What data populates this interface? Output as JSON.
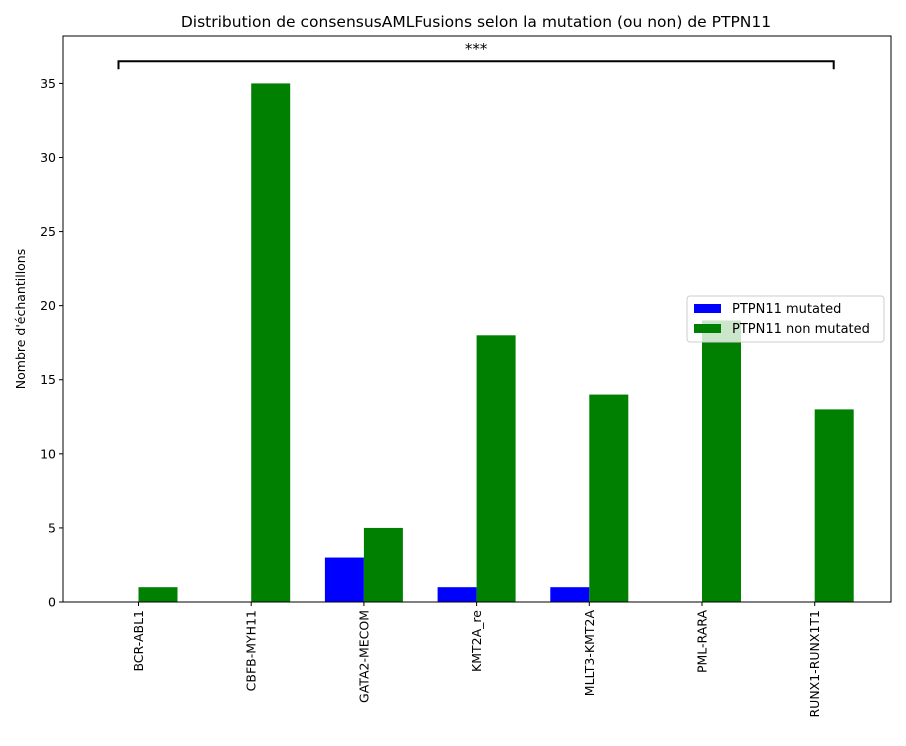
{
  "chart_data": {
    "type": "bar",
    "title": "Distribution de consensusAMLFusions selon la mutation (ou non) de PTPN11",
    "ylabel": "Nombre d'échantillons",
    "xlabel": "",
    "categories": [
      "BCR-ABL1",
      "CBFB-MYH11",
      "GATA2-MECOM",
      "KMT2A_re",
      "MLLT3-KMT2A",
      "PML-RARA",
      "RUNX1-RUNX1T1"
    ],
    "series": [
      {
        "name": "PTPN11 mutated",
        "color": "#0000ff",
        "values": [
          0,
          0,
          3,
          1,
          1,
          0,
          0
        ]
      },
      {
        "name": "PTPN11 non mutated",
        "color": "#008000",
        "values": [
          1,
          35,
          5,
          18,
          14,
          19,
          13
        ]
      }
    ],
    "ylim": [
      0,
      38.2
    ],
    "yticks": [
      0,
      5,
      10,
      15,
      20,
      25,
      30,
      35
    ],
    "grid": false,
    "legend_position": "center-right",
    "annotation": {
      "text": "***",
      "from_category": 0,
      "to_category": 6,
      "y": 36.5
    }
  }
}
